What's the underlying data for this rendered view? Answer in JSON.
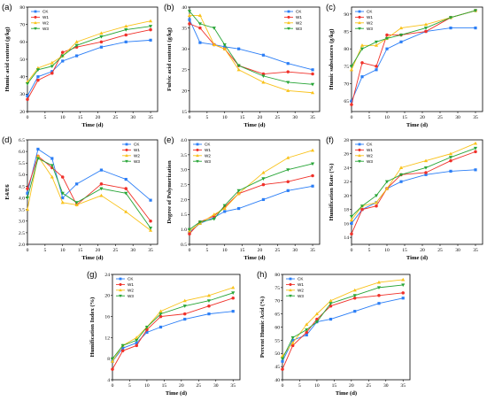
{
  "chart_data": [
    {
      "panel_label": "(a)",
      "type": "line",
      "xlabel": "Time (d)",
      "ylabel": "Humic acid content (g/kg)",
      "x": [
        0,
        3,
        7,
        10,
        14,
        21,
        28,
        35
      ],
      "xlim": [
        0,
        37
      ],
      "xticks": [
        "0",
        "5",
        "10",
        "15",
        "20",
        "25",
        "30",
        "35"
      ],
      "ylim": [
        20,
        80
      ],
      "yticks": [
        "20",
        "30",
        "40",
        "50",
        "60",
        "70",
        "80"
      ],
      "legend": "top-left",
      "series": [
        {
          "name": "CK",
          "color": "#2b7ef6",
          "marker": "square",
          "values": [
            29,
            40,
            43,
            49,
            52,
            57,
            60,
            61
          ]
        },
        {
          "name": "W1",
          "color": "#f0312a",
          "marker": "circle",
          "values": [
            27,
            38,
            42,
            54,
            57,
            60,
            64,
            67
          ]
        },
        {
          "name": "W2",
          "color": "#f9c21a",
          "marker": "triangle-up",
          "values": [
            37,
            45,
            48,
            52,
            60,
            65,
            69,
            72
          ]
        },
        {
          "name": "W3",
          "color": "#27a536",
          "marker": "triangle-down",
          "values": [
            36,
            44,
            46,
            52,
            58,
            63,
            67,
            69
          ]
        }
      ]
    },
    {
      "panel_label": "(b)",
      "type": "line",
      "xlabel": "Time (d)",
      "ylabel": "Fulvic acid content (g/kg)",
      "x": [
        0,
        3,
        7,
        10,
        14,
        21,
        28,
        35
      ],
      "xlim": [
        0,
        37
      ],
      "xticks": [
        "0",
        "5",
        "10",
        "15",
        "20",
        "25",
        "30",
        "35"
      ],
      "ylim": [
        15,
        40
      ],
      "yticks": [
        "15",
        "20",
        "25",
        "30",
        "35",
        "40"
      ],
      "legend": "top-right",
      "series": [
        {
          "name": "CK",
          "color": "#2b7ef6",
          "marker": "square",
          "values": [
            37,
            31.5,
            31,
            30.5,
            30,
            28.5,
            26.5,
            25
          ]
        },
        {
          "name": "W1",
          "color": "#f0312a",
          "marker": "circle",
          "values": [
            36,
            35,
            31,
            30,
            26,
            24,
            24.5,
            24
          ]
        },
        {
          "name": "W2",
          "color": "#f9c21a",
          "marker": "triangle-up",
          "values": [
            38,
            38,
            31,
            30,
            25,
            22,
            20,
            19.5
          ]
        },
        {
          "name": "W3",
          "color": "#27a536",
          "marker": "triangle-down",
          "values": [
            39,
            36,
            35,
            31,
            26,
            23.5,
            22,
            21.5
          ]
        }
      ]
    },
    {
      "panel_label": "(c)",
      "type": "line",
      "xlabel": "Time (d)",
      "ylabel": "Humic substances (g/kg)",
      "x": [
        0,
        3,
        7,
        10,
        14,
        21,
        28,
        35
      ],
      "xlim": [
        0,
        37
      ],
      "xticks": [
        "0",
        "5",
        "10",
        "15",
        "20",
        "25",
        "30",
        "35"
      ],
      "ylim": [
        62,
        92
      ],
      "yticks": [
        "65",
        "70",
        "75",
        "80",
        "85",
        "90"
      ],
      "legend": "top-left",
      "series": [
        {
          "name": "CK",
          "color": "#2b7ef6",
          "marker": "square",
          "values": [
            65,
            72,
            74,
            80,
            82,
            85,
            86,
            86
          ]
        },
        {
          "name": "W1",
          "color": "#f0312a",
          "marker": "circle",
          "values": [
            64,
            76,
            75,
            84,
            84,
            85,
            89,
            91
          ]
        },
        {
          "name": "W2",
          "color": "#f9c21a",
          "marker": "triangle-up",
          "values": [
            74,
            81,
            81,
            83,
            86,
            87,
            89,
            91
          ]
        },
        {
          "name": "W3",
          "color": "#27a536",
          "marker": "triangle-down",
          "values": [
            75,
            80,
            82,
            83,
            84,
            86,
            89,
            91
          ]
        }
      ]
    },
    {
      "panel_label": "(d)",
      "type": "line",
      "xlabel": "Time (d)",
      "ylabel": "E4/E6",
      "x": [
        0,
        3,
        7,
        10,
        14,
        21,
        28,
        35
      ],
      "xlim": [
        0,
        37
      ],
      "xticks": [
        "0",
        "5",
        "10",
        "15",
        "20",
        "25",
        "30",
        "35"
      ],
      "ylim": [
        2.0,
        6.5
      ],
      "yticks": [
        "2.0",
        "2.5",
        "3.0",
        "3.5",
        "4.0",
        "4.5",
        "5.0",
        "5.5",
        "6.0",
        "6.5"
      ],
      "legend": "top-right",
      "series": [
        {
          "name": "CK",
          "color": "#2b7ef6",
          "marker": "square",
          "values": [
            4.2,
            6.1,
            5.7,
            4.0,
            4.6,
            5.2,
            4.8,
            3.9
          ]
        },
        {
          "name": "W1",
          "color": "#f0312a",
          "marker": "circle",
          "values": [
            4.4,
            5.8,
            5.3,
            4.9,
            3.7,
            4.6,
            4.4,
            3.0
          ]
        },
        {
          "name": "W2",
          "color": "#f9c21a",
          "marker": "triangle-up",
          "values": [
            3.5,
            5.8,
            4.9,
            3.8,
            3.7,
            4.1,
            3.4,
            2.6
          ]
        },
        {
          "name": "W3",
          "color": "#27a536",
          "marker": "triangle-down",
          "values": [
            4.0,
            5.7,
            5.4,
            4.2,
            3.8,
            4.4,
            4.2,
            2.7
          ]
        }
      ]
    },
    {
      "panel_label": "(e)",
      "type": "line",
      "xlabel": "Time (d)",
      "ylabel": "Degree of Polymerization",
      "x": [
        0,
        3,
        7,
        10,
        14,
        21,
        28,
        35
      ],
      "xlim": [
        0,
        37
      ],
      "xticks": [
        "0",
        "5",
        "10",
        "15",
        "20",
        "25",
        "30",
        "35"
      ],
      "ylim": [
        0.5,
        4.0
      ],
      "yticks": [
        "0.5",
        "1.0",
        "1.5",
        "2.0",
        "2.5",
        "3.0",
        "3.5",
        "4.0"
      ],
      "legend": "top-left",
      "series": [
        {
          "name": "CK",
          "color": "#2b7ef6",
          "marker": "square",
          "values": [
            0.9,
            1.2,
            1.4,
            1.6,
            1.7,
            2.0,
            2.3,
            2.45
          ]
        },
        {
          "name": "W1",
          "color": "#f0312a",
          "marker": "circle",
          "values": [
            0.85,
            1.25,
            1.45,
            1.75,
            2.2,
            2.5,
            2.6,
            2.8
          ]
        },
        {
          "name": "W2",
          "color": "#f9c21a",
          "marker": "triangle-up",
          "values": [
            0.95,
            1.2,
            1.5,
            1.7,
            2.2,
            2.9,
            3.4,
            3.65
          ]
        },
        {
          "name": "W3",
          "color": "#27a536",
          "marker": "triangle-down",
          "values": [
            1.0,
            1.25,
            1.35,
            1.8,
            2.3,
            2.7,
            3.0,
            3.2
          ]
        }
      ]
    },
    {
      "panel_label": "(f)",
      "type": "line",
      "xlabel": "Time (d)",
      "ylabel": "Humification Rate (%)",
      "x": [
        0,
        3,
        7,
        10,
        14,
        21,
        28,
        35
      ],
      "xlim": [
        0,
        37
      ],
      "xticks": [
        "0",
        "5",
        "10",
        "15",
        "20",
        "25",
        "30",
        "35"
      ],
      "ylim": [
        13,
        28
      ],
      "yticks": [
        "14",
        "16",
        "18",
        "20",
        "22",
        "24",
        "26",
        "28"
      ],
      "legend": "top-left",
      "series": [
        {
          "name": "CK",
          "color": "#2b7ef6",
          "marker": "square",
          "values": [
            16,
            18,
            19,
            21,
            22,
            23,
            23.5,
            23.7
          ]
        },
        {
          "name": "W1",
          "color": "#f0312a",
          "marker": "circle",
          "values": [
            14.5,
            18,
            18.5,
            21,
            23,
            23.3,
            25,
            26.3
          ]
        },
        {
          "name": "W2",
          "color": "#f9c21a",
          "marker": "triangle-up",
          "values": [
            16.5,
            18.5,
            19,
            21,
            24,
            25,
            26,
            27.5
          ]
        },
        {
          "name": "W3",
          "color": "#27a536",
          "marker": "triangle-down",
          "values": [
            17,
            18.5,
            20,
            22,
            23,
            24,
            25.5,
            26.8
          ]
        }
      ]
    },
    {
      "panel_label": "(g)",
      "type": "line",
      "xlabel": "Time (d)",
      "ylabel": "Humification Index (%)",
      "x": [
        0,
        3,
        7,
        10,
        14,
        21,
        28,
        35
      ],
      "xlim": [
        0,
        37
      ],
      "xticks": [
        "0",
        "5",
        "10",
        "15",
        "20",
        "25",
        "30",
        "35"
      ],
      "ylim": [
        4,
        24
      ],
      "yticks": [
        "4",
        "8",
        "12",
        "16",
        "20",
        "24"
      ],
      "legend": "top-left",
      "series": [
        {
          "name": "CK",
          "color": "#2b7ef6",
          "marker": "square",
          "values": [
            7.5,
            10,
            11,
            13,
            14,
            15.5,
            16.5,
            17
          ]
        },
        {
          "name": "W1",
          "color": "#f0312a",
          "marker": "circle",
          "values": [
            6,
            9.5,
            10.5,
            13.5,
            16,
            16.5,
            18,
            19.5
          ]
        },
        {
          "name": "W2",
          "color": "#f9c21a",
          "marker": "triangle-up",
          "values": [
            7.5,
            10.5,
            12,
            14,
            17,
            19,
            20,
            21.5
          ]
        },
        {
          "name": "W3",
          "color": "#27a536",
          "marker": "triangle-down",
          "values": [
            8,
            10.5,
            11.5,
            14,
            16.5,
            18,
            19,
            20.5
          ]
        }
      ]
    },
    {
      "panel_label": "(h)",
      "type": "line",
      "xlabel": "Time (d)",
      "ylabel": "Percent Humic Acid (%)",
      "x": [
        0,
        3,
        7,
        10,
        14,
        21,
        28,
        35
      ],
      "xlim": [
        0,
        37
      ],
      "xticks": [
        "0",
        "5",
        "10",
        "15",
        "20",
        "25",
        "30",
        "35"
      ],
      "ylim": [
        40,
        80
      ],
      "yticks": [
        "40",
        "45",
        "50",
        "55",
        "60",
        "65",
        "70",
        "75",
        "80"
      ],
      "legend": "top-left",
      "series": [
        {
          "name": "CK",
          "color": "#2b7ef6",
          "marker": "square",
          "values": [
            47,
            55,
            57,
            62,
            63,
            66,
            69,
            71
          ]
        },
        {
          "name": "W1",
          "color": "#f0312a",
          "marker": "circle",
          "values": [
            44,
            53,
            58,
            63,
            68,
            71,
            72,
            73
          ]
        },
        {
          "name": "W2",
          "color": "#f9c21a",
          "marker": "triangle-up",
          "values": [
            49,
            54,
            61,
            65,
            70,
            74,
            77,
            78
          ]
        },
        {
          "name": "W3",
          "color": "#27a536",
          "marker": "triangle-down",
          "values": [
            48,
            56,
            59,
            62,
            69,
            72,
            75,
            76
          ]
        }
      ]
    }
  ]
}
